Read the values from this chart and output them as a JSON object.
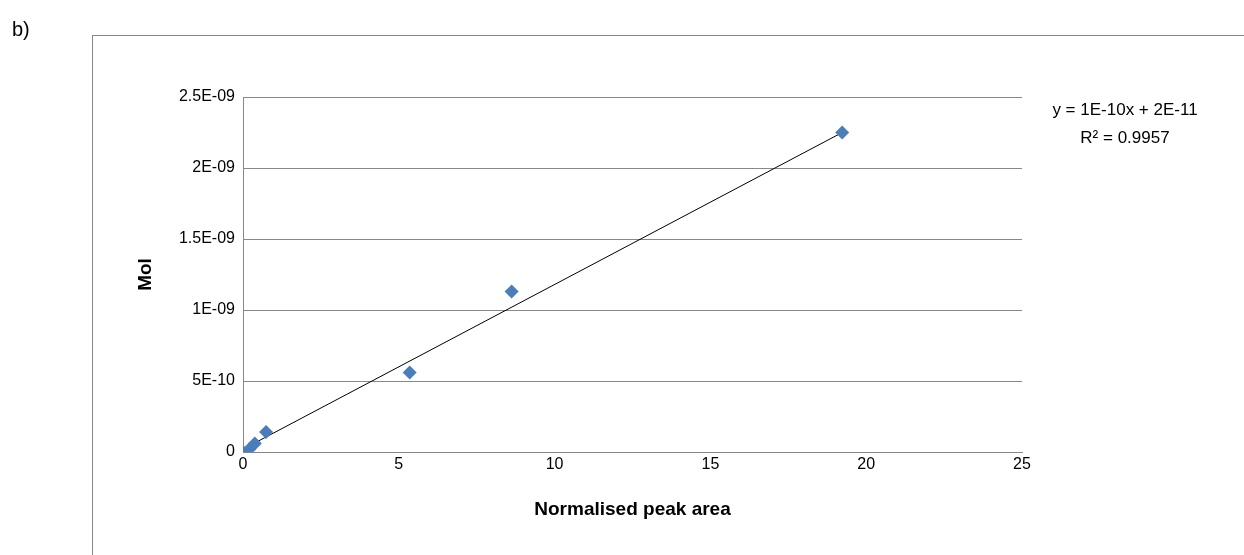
{
  "chart_data": {
    "type": "scatter",
    "xlabel": "Normalised peak area",
    "ylabel": "Mol",
    "annotations": [
      "b)",
      "y = 1E-10x + 2E-11",
      "R² = 0.9957"
    ],
    "xlim": [
      0,
      25
    ],
    "xticks": [
      0,
      5,
      10,
      15,
      20,
      25
    ],
    "ylim": [
      0,
      2.5e-09
    ],
    "yticks": [
      {
        "value": 0,
        "label": "0"
      },
      {
        "value": 5e-10,
        "label": "5E-10"
      },
      {
        "value": 1e-09,
        "label": "1E-09"
      },
      {
        "value": 1.5e-09,
        "label": "1.5E-09"
      },
      {
        "value": 2e-09,
        "label": "2E-09"
      },
      {
        "value": 2.5e-09,
        "label": "2.5E-09"
      }
    ],
    "grid": "y",
    "legend": false,
    "series": [
      {
        "type": "scatter",
        "color": "#4a7ebb",
        "marker": "diamond",
        "x": [
          0,
          0.2,
          0.38,
          0.74,
          5.35,
          8.62,
          19.23
        ],
        "values": [
          0,
          2e-11,
          6e-11,
          1.4e-10,
          5.6e-10,
          1.13e-09,
          2.25e-09
        ]
      },
      {
        "type": "line",
        "color": "#000000",
        "marker": "none",
        "line_style": "solid",
        "x": [
          0,
          19.23
        ],
        "values": [
          2e-11,
          2.25e-09
        ]
      }
    ]
  }
}
